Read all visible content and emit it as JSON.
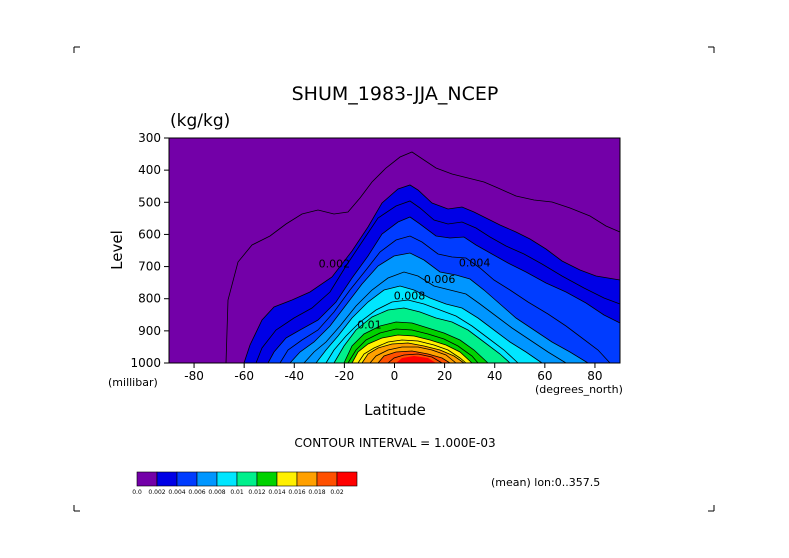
{
  "chart_data": {
    "type": "contour",
    "title": "SHUM_1983-JJA_NCEP",
    "units": "(kg/kg)",
    "xlabel": "Latitude",
    "ylabel": "Level",
    "x_unit_label": "(degrees_north)",
    "y_unit_label": "(millibar)",
    "xlim": [
      -90,
      90
    ],
    "ylim": [
      1000,
      300
    ],
    "x_ticks": [
      -80,
      -60,
      -40,
      -20,
      0,
      20,
      40,
      60,
      80
    ],
    "y_ticks": [
      300,
      400,
      500,
      600,
      700,
      800,
      900,
      1000
    ],
    "contour_interval_text": "CONTOUR INTERVAL = 1.000E-03",
    "footer_right": "(mean) lon:0..357.5",
    "contour_labels": [
      {
        "text": "0.002",
        "lat": -24,
        "level": 690
      },
      {
        "text": "0.004",
        "lat": 32,
        "level": 688
      },
      {
        "text": "0.006",
        "lat": 18,
        "level": 738
      },
      {
        "text": "0.008",
        "lat": 6,
        "level": 790
      },
      {
        "text": "0.01",
        "lat": -10,
        "level": 880
      }
    ],
    "colorbar": {
      "labels": [
        "0.0",
        "0.002",
        "0.004",
        "0.006",
        "0.008",
        "0.01",
        "0.012",
        "0.014",
        "0.016",
        "0.018",
        "0.02"
      ],
      "colors": [
        "#7300A8",
        "#0000E6",
        "#003CFF",
        "#0096FF",
        "#00E6FF",
        "#00F08C",
        "#00D200",
        "#FFF000",
        "#FFA000",
        "#FF5000",
        "#FF0000"
      ]
    },
    "top_profile": {
      "lats": [
        -90,
        -70,
        -55,
        -45,
        -35,
        -30,
        -25,
        -20,
        -15,
        -10,
        -5,
        0,
        5,
        10,
        15,
        20,
        25,
        30,
        35,
        40,
        45,
        50,
        55,
        60,
        65,
        70,
        75,
        80,
        85,
        90
      ],
      "levels": [
        1000,
        1000,
        1000,
        1000,
        1000,
        1000,
        1000,
        990,
        950,
        880,
        820,
        770,
        750,
        755,
        770,
        800,
        840,
        870,
        880,
        900,
        920,
        940,
        955,
        965,
        975,
        985,
        995,
        1000,
        1000,
        1000
      ]
    }
  }
}
